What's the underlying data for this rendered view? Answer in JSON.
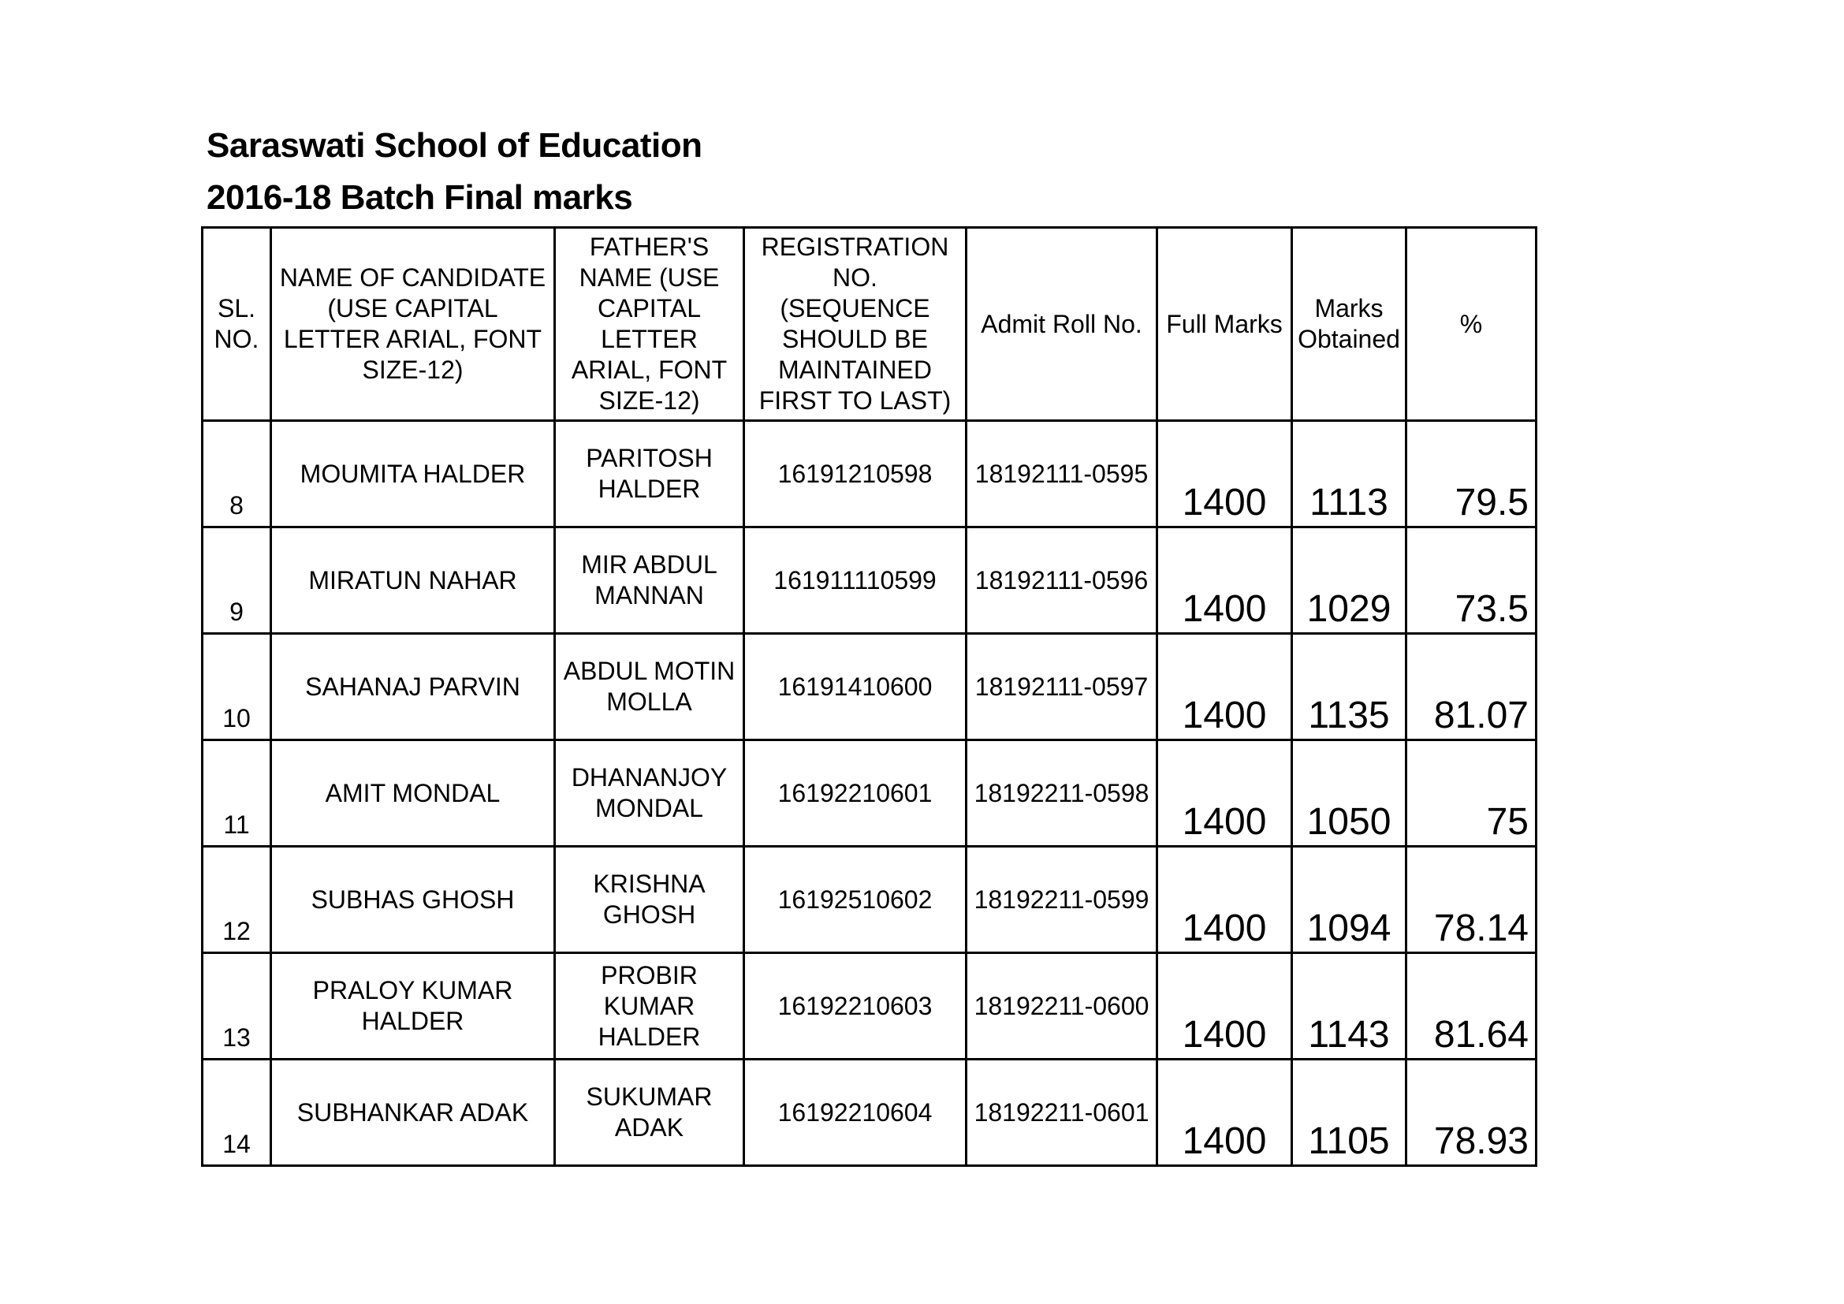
{
  "title": "Saraswati School of Education",
  "subtitle": "2016-18 Batch Final marks",
  "headers": {
    "sl": "SL. NO.",
    "name": "NAME OF CANDIDATE (USE CAPITAL LETTER ARIAL, FONT SIZE-12)",
    "father": "FATHER'S NAME (USE CAPITAL LETTER ARIAL, FONT SIZE-12)",
    "reg": "REGISTRATION NO. (SEQUENCE SHOULD BE MAINTAINED FIRST TO LAST)",
    "roll": "Admit Roll No.",
    "full": "Full Marks",
    "obtained": "Marks Obtained",
    "pct": "%"
  },
  "rows": [
    {
      "sl": "8",
      "name": "MOUMITA HALDER",
      "father": "PARITOSH HALDER",
      "reg": "16191210598",
      "roll": "18192111-0595",
      "full": "1400",
      "obtained": "1113",
      "pct": "79.5"
    },
    {
      "sl": "9",
      "name": "MIRATUN NAHAR",
      "father": "MIR ABDUL MANNAN",
      "reg": "161911110599",
      "roll": "18192111-0596",
      "full": "1400",
      "obtained": "1029",
      "pct": "73.5"
    },
    {
      "sl": "10",
      "name": "SAHANAJ PARVIN",
      "father": "ABDUL MOTIN MOLLA",
      "reg": "16191410600",
      "roll": "18192111-0597",
      "full": "1400",
      "obtained": "1135",
      "pct": "81.07"
    },
    {
      "sl": "11",
      "name": "AMIT MONDAL",
      "father": "DHANANJOY MONDAL",
      "reg": "16192210601",
      "roll": "18192211-0598",
      "full": "1400",
      "obtained": "1050",
      "pct": "75"
    },
    {
      "sl": "12",
      "name": "SUBHAS GHOSH",
      "father": "KRISHNA GHOSH",
      "reg": "16192510602",
      "roll": "18192211-0599",
      "full": "1400",
      "obtained": "1094",
      "pct": "78.14"
    },
    {
      "sl": "13",
      "name": "PRALOY KUMAR HALDER",
      "father": "PROBIR KUMAR HALDER",
      "reg": "16192210603",
      "roll": "18192211-0600",
      "full": "1400",
      "obtained": "1143",
      "pct": "81.64"
    },
    {
      "sl": "14",
      "name": "SUBHANKAR ADAK",
      "father": "SUKUMAR ADAK",
      "reg": "16192210604",
      "roll": "18192211-0601",
      "full": "1400",
      "obtained": "1105",
      "pct": "78.93"
    }
  ]
}
